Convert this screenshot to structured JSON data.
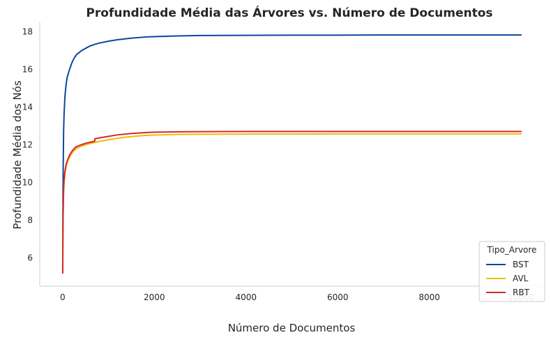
{
  "chart_data": {
    "type": "line",
    "title": "Profundidade Média das Árvores vs. Número de Documentos",
    "xlabel": "Número de Documentos",
    "ylabel": "Profundidade Média dos Nós",
    "xlim": [
      -500,
      10500
    ],
    "ylim": [
      4.5,
      18.5
    ],
    "xticks": [
      0,
      2000,
      4000,
      6000,
      8000,
      10000
    ],
    "xtick_labels": [
      "0",
      "2000",
      "4000",
      "6000",
      "8000",
      "10000"
    ],
    "yticks": [
      6,
      8,
      10,
      12,
      14,
      16,
      18
    ],
    "ytick_labels": [
      "6",
      "8",
      "10",
      "12",
      "14",
      "16",
      "18"
    ],
    "grid": false,
    "legend": {
      "title": "Tipo_Arvore",
      "placement": "lower-right"
    },
    "series": [
      {
        "name": "BST",
        "color": "#0a47a0",
        "x": [
          1,
          5,
          10,
          20,
          30,
          50,
          75,
          100,
          150,
          200,
          250,
          300,
          400,
          500,
          600,
          700,
          800,
          1000,
          1200,
          1500,
          1800,
          2000,
          2500,
          3000,
          4000,
          5000,
          6000,
          7000,
          8000,
          9000,
          10000
        ],
        "y": [
          5.2,
          8.5,
          10.4,
          12.7,
          13.6,
          14.6,
          15.2,
          15.6,
          16.0,
          16.35,
          16.6,
          16.78,
          16.98,
          17.12,
          17.25,
          17.33,
          17.4,
          17.5,
          17.58,
          17.66,
          17.72,
          17.74,
          17.78,
          17.8,
          17.81,
          17.82,
          17.82,
          17.83,
          17.83,
          17.83,
          17.83
        ]
      },
      {
        "name": "AVL",
        "color": "#f2b90d",
        "x": [
          1,
          5,
          10,
          20,
          30,
          50,
          75,
          100,
          150,
          200,
          250,
          300,
          400,
          500,
          600,
          700,
          800,
          1000,
          1200,
          1500,
          1800,
          2000,
          2500,
          3000,
          4000,
          5000,
          6000,
          7000,
          8000,
          9000,
          10000
        ],
        "y": [
          5.2,
          7.2,
          8.3,
          9.5,
          10.0,
          10.5,
          10.85,
          11.05,
          11.35,
          11.55,
          11.7,
          11.8,
          11.92,
          12.0,
          12.07,
          12.12,
          12.18,
          12.27,
          12.35,
          12.44,
          12.5,
          12.52,
          12.55,
          12.56,
          12.57,
          12.57,
          12.58,
          12.58,
          12.58,
          12.58,
          12.58
        ]
      },
      {
        "name": "RBT",
        "color": "#d22b27",
        "x": [
          1,
          5,
          10,
          20,
          30,
          50,
          75,
          100,
          150,
          200,
          250,
          300,
          400,
          500,
          600,
          700,
          701,
          800,
          1000,
          1200,
          1500,
          1800,
          2000,
          2500,
          3000,
          4000,
          5000,
          6000,
          7000,
          8000,
          9000,
          10000
        ],
        "y": [
          5.2,
          7.2,
          8.4,
          9.6,
          10.1,
          10.6,
          10.95,
          11.15,
          11.45,
          11.65,
          11.8,
          11.9,
          12.0,
          12.08,
          12.14,
          12.19,
          12.32,
          12.37,
          12.45,
          12.53,
          12.6,
          12.65,
          12.67,
          12.69,
          12.7,
          12.71,
          12.71,
          12.71,
          12.71,
          12.71,
          12.71,
          12.71
        ]
      }
    ]
  }
}
